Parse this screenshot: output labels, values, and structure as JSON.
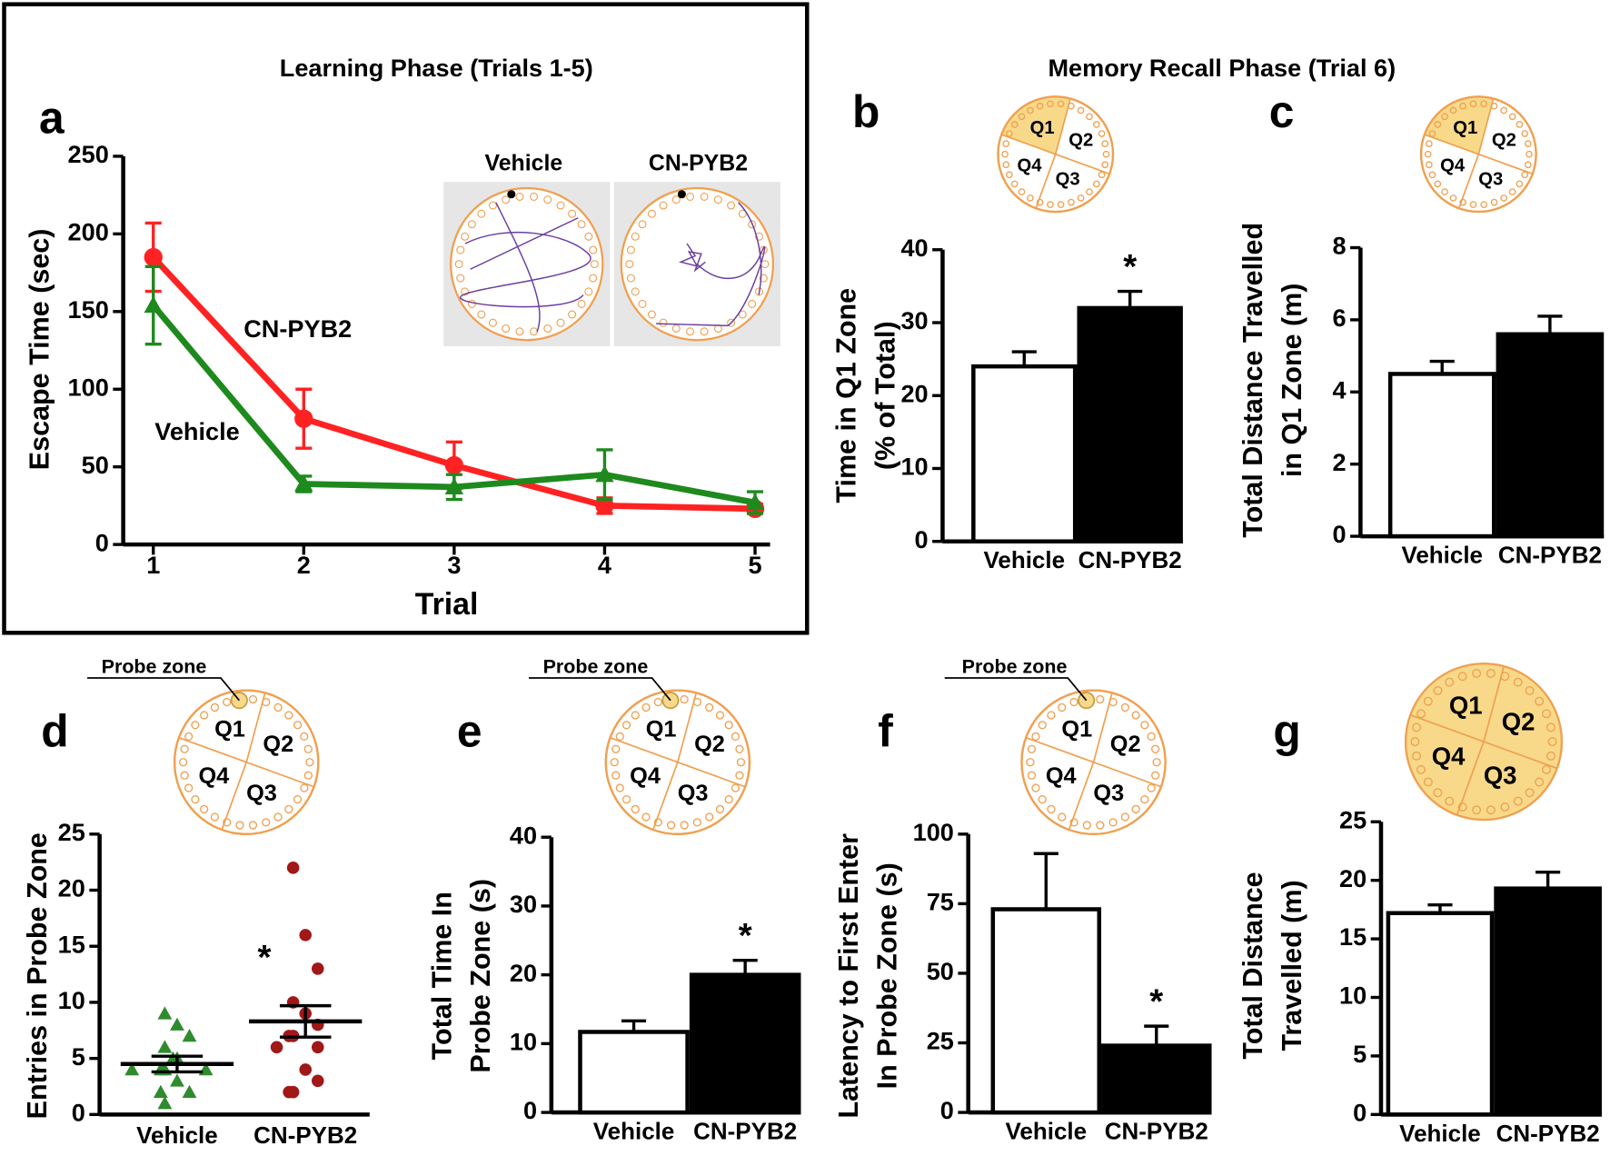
{
  "section_title": "Memory Recall Phase (Trial 6)",
  "chart_data": [
    {
      "type": "line",
      "panel": "a",
      "title": "Learning Phase (Trials 1-5)",
      "xlabel": "Trial",
      "ylabel": "Escape Time (sec)",
      "x": [
        1,
        2,
        3,
        4,
        5
      ],
      "xlim": [
        0.8,
        5.1
      ],
      "xticks": [
        1,
        2,
        3,
        4,
        5
      ],
      "ylim": [
        0,
        250
      ],
      "yticks": [
        0,
        50,
        100,
        150,
        200,
        250
      ],
      "series": [
        {
          "name": "CN-PYB2",
          "color": "#ff2222",
          "marker": "circle",
          "values": [
            185,
            81,
            51,
            25,
            23
          ],
          "errors": [
            22,
            19,
            15,
            5,
            3
          ]
        },
        {
          "name": "Vehicle",
          "color": "#1e8a1e",
          "marker": "triangle",
          "values": [
            154,
            39,
            37,
            45,
            27
          ],
          "errors": [
            25,
            5,
            8,
            16,
            7
          ]
        }
      ],
      "inset_labels": [
        "Vehicle",
        "CN-PYB2"
      ]
    },
    {
      "type": "bar",
      "panel": "b",
      "ylabel": [
        "Time in Q1 Zone",
        "(% of Total)"
      ],
      "categories": [
        "Vehicle",
        "CN-PYB2"
      ],
      "values": [
        24,
        32
      ],
      "errors": [
        2,
        2.3
      ],
      "colors": [
        "#ffffff",
        "#000000"
      ],
      "ylim": [
        0,
        40
      ],
      "yticks": [
        0,
        10,
        20,
        30,
        40
      ],
      "annotation": "*",
      "diagram": {
        "labels": [
          "Q1",
          "Q2",
          "Q3",
          "Q4"
        ],
        "shaded": [
          "Q1"
        ]
      }
    },
    {
      "type": "bar",
      "panel": "c",
      "ylabel": [
        "Total Distance Travelled",
        "in Q1 Zone (m)"
      ],
      "categories": [
        "Vehicle",
        "CN-PYB2"
      ],
      "values": [
        4.5,
        5.6
      ],
      "errors": [
        0.35,
        0.5
      ],
      "colors": [
        "#ffffff",
        "#000000"
      ],
      "ylim": [
        0,
        8
      ],
      "yticks": [
        0,
        2,
        4,
        6,
        8
      ],
      "diagram": {
        "labels": [
          "Q1",
          "Q2",
          "Q3",
          "Q4"
        ],
        "shaded": [
          "Q1"
        ]
      }
    },
    {
      "type": "dot",
      "panel": "d",
      "ylabel": [
        "Entries in Probe Zone"
      ],
      "categories": [
        "Vehicle",
        "CN-PYB2"
      ],
      "points": [
        [
          9,
          8,
          7,
          6,
          5,
          5,
          4,
          4,
          4,
          4,
          3,
          2,
          1,
          2
        ],
        [
          22,
          16,
          13,
          10,
          9,
          8,
          7,
          7,
          6,
          6,
          4,
          3,
          2,
          2
        ]
      ],
      "means": [
        4.5,
        8.3
      ],
      "sems": [
        0.7,
        1.4
      ],
      "colors": [
        "#2e8b2e",
        "#a01818"
      ],
      "markers": [
        "triangle",
        "circle"
      ],
      "ylim": [
        0,
        25
      ],
      "yticks": [
        0,
        5,
        10,
        15,
        20,
        25
      ],
      "annotation": "*",
      "probe_label": "Probe zone",
      "diagram": {
        "labels": [
          "Q1",
          "Q2",
          "Q3",
          "Q4"
        ],
        "shaded": []
      }
    },
    {
      "type": "bar",
      "panel": "e",
      "ylabel": [
        "Total Time In",
        "Probe Zone (s)"
      ],
      "categories": [
        "Vehicle",
        "CN-PYB2"
      ],
      "values": [
        11.7,
        20
      ],
      "errors": [
        1.6,
        2.1
      ],
      "colors": [
        "#ffffff",
        "#000000"
      ],
      "ylim": [
        0,
        40
      ],
      "yticks": [
        0,
        10,
        20,
        30,
        40
      ],
      "annotation": "*",
      "probe_label": "Probe zone",
      "diagram": {
        "labels": [
          "Q1",
          "Q2",
          "Q3",
          "Q4"
        ],
        "shaded": []
      }
    },
    {
      "type": "bar",
      "panel": "f",
      "ylabel": [
        "Latency to First Enter",
        "In Probe Zone (s)"
      ],
      "categories": [
        "Vehicle",
        "CN-PYB2"
      ],
      "values": [
        73,
        24
      ],
      "errors": [
        20,
        7
      ],
      "colors": [
        "#ffffff",
        "#000000"
      ],
      "ylim": [
        0,
        100
      ],
      "yticks": [
        0,
        25,
        50,
        75,
        100
      ],
      "annotation": "*",
      "probe_label": "Probe zone",
      "diagram": {
        "labels": [
          "Q1",
          "Q2",
          "Q3",
          "Q4"
        ],
        "shaded": []
      }
    },
    {
      "type": "bar",
      "panel": "g",
      "ylabel": [
        "Total Distance",
        "Travelled (m)"
      ],
      "categories": [
        "Vehicle",
        "CN-PYB2"
      ],
      "values": [
        17.2,
        19.3
      ],
      "errors": [
        0.7,
        1.4
      ],
      "colors": [
        "#ffffff",
        "#000000"
      ],
      "ylim": [
        0,
        25
      ],
      "yticks": [
        0,
        5,
        10,
        15,
        20,
        25
      ],
      "diagram": {
        "labels": [
          "Q1",
          "Q2",
          "Q3",
          "Q4"
        ],
        "shaded": [
          "Q1",
          "Q2",
          "Q3",
          "Q4"
        ]
      }
    }
  ]
}
